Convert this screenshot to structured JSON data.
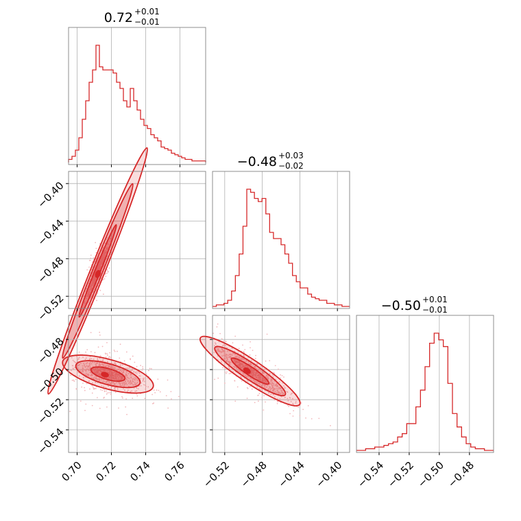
{
  "chart_data": {
    "type": "corner",
    "color": "#d62728",
    "fill_color": "#f4a0a4",
    "point_color": "#f2b8bb",
    "grid": true,
    "parameters": [
      {
        "median": "0.72",
        "upper": "+0.01",
        "lower": "−0.01",
        "range": [
          0.695,
          0.775
        ],
        "ticks": [
          0.7,
          0.72,
          0.74,
          0.76
        ],
        "tick_labels": [
          "0.70",
          "0.72",
          "0.74",
          "0.76"
        ]
      },
      {
        "median": "−0.48",
        "upper": "+0.03",
        "lower": "−0.02",
        "range": [
          -0.533,
          -0.387
        ],
        "ticks": [
          -0.52,
          -0.48,
          -0.44,
          -0.4
        ],
        "tick_labels": [
          "−0.52",
          "−0.48",
          "−0.44",
          "−0.40"
        ]
      },
      {
        "median": "−0.50",
        "upper": "+0.01",
        "lower": "−0.01",
        "range": [
          -0.555,
          -0.464
        ],
        "ticks": [
          -0.54,
          -0.52,
          -0.5,
          -0.48
        ],
        "tick_labels": [
          "−0.54",
          "−0.52",
          "−0.50",
          "−0.48"
        ]
      }
    ],
    "histograms": [
      {
        "bin_edges": [
          0.695,
          0.775
        ],
        "counts": [
          2,
          4,
          8,
          16,
          28,
          40,
          52,
          60,
          76,
          62,
          60,
          60,
          60,
          58,
          52,
          48,
          40,
          36,
          48,
          40,
          34,
          28,
          24,
          22,
          18,
          16,
          14,
          10,
          9,
          8,
          6,
          5,
          4,
          3,
          2,
          2,
          1,
          1,
          1,
          1
        ]
      },
      {
        "bin_edges": [
          -0.533,
          -0.387
        ],
        "counts": [
          0,
          1,
          1,
          2,
          4,
          10,
          20,
          34,
          52,
          76,
          74,
          70,
          68,
          70,
          60,
          48,
          44,
          44,
          40,
          34,
          28,
          20,
          16,
          12,
          12,
          8,
          6,
          5,
          4,
          4,
          2,
          2,
          1,
          1,
          0,
          0
        ]
      },
      {
        "bin_edges": [
          -0.555,
          -0.464
        ],
        "counts": [
          0,
          0,
          1,
          1,
          2,
          2,
          3,
          4,
          5,
          8,
          10,
          16,
          16,
          26,
          36,
          50,
          64,
          70,
          66,
          62,
          40,
          22,
          14,
          8,
          4,
          2,
          1,
          1,
          0,
          0
        ]
      }
    ],
    "correlations": [
      {
        "x": 0,
        "y": 1,
        "mean": [
          0.712,
          -0.493
        ],
        "slope": 4.55,
        "spread_x": 0.012,
        "spread_perp": 0.0035
      },
      {
        "x": 0,
        "y": 2,
        "mean": [
          0.718,
          -0.503
        ],
        "slope": -0.32,
        "spread_x": 0.011,
        "spread_perp": 0.0045
      },
      {
        "x": 1,
        "y": 2,
        "mean": [
          -0.493,
          -0.501
        ],
        "slope": -0.42,
        "spread_x": 0.022,
        "spread_perp": 0.0035
      }
    ]
  }
}
